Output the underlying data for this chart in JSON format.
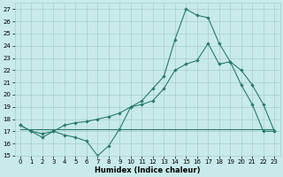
{
  "xlabel": "Humidex (Indice chaleur)",
  "bg_color": "#c8eaea",
  "grid_color": "#a8cccc",
  "line_color": "#2a7a6a",
  "xlim": [
    -0.5,
    23.5
  ],
  "ylim": [
    15,
    27.5
  ],
  "yticks": [
    15,
    16,
    17,
    18,
    19,
    20,
    21,
    22,
    23,
    24,
    25,
    26,
    27
  ],
  "xticks": [
    0,
    1,
    2,
    3,
    4,
    5,
    6,
    7,
    8,
    9,
    10,
    11,
    12,
    13,
    14,
    15,
    16,
    17,
    18,
    19,
    20,
    21,
    22,
    23
  ],
  "line1_x": [
    0,
    1,
    2,
    3,
    4,
    5,
    6,
    7,
    8,
    9,
    10,
    11,
    12,
    13,
    14,
    15,
    16,
    17,
    18,
    19,
    20,
    21,
    22,
    23
  ],
  "line1_y": [
    17.5,
    17.0,
    16.5,
    17.0,
    16.7,
    16.5,
    16.2,
    15.0,
    15.8,
    17.2,
    19.0,
    19.5,
    20.5,
    21.5,
    24.5,
    27.0,
    26.5,
    26.3,
    24.2,
    22.7,
    20.8,
    19.2,
    17.0,
    17.0
  ],
  "line2_x": [
    0,
    23
  ],
  "line2_y": [
    17.2,
    17.2
  ],
  "line3_x": [
    0,
    1,
    2,
    3,
    4,
    5,
    6,
    7,
    8,
    9,
    10,
    11,
    12,
    13,
    14,
    15,
    16,
    17,
    18,
    19,
    20,
    21,
    22,
    23
  ],
  "line3_y": [
    17.5,
    17.0,
    16.8,
    17.0,
    17.5,
    17.7,
    17.8,
    18.0,
    18.2,
    18.5,
    19.0,
    19.2,
    19.5,
    20.5,
    22.0,
    22.5,
    22.8,
    24.2,
    22.5,
    22.7,
    22.0,
    20.8,
    19.2,
    17.0
  ]
}
